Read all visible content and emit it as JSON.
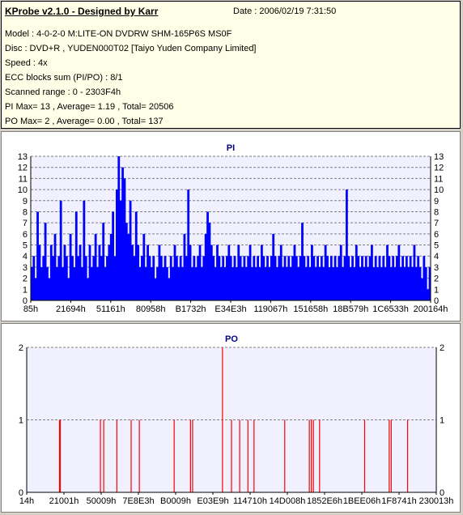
{
  "header": {
    "title": "KProbe v2.1.0 - Designed by Karr",
    "date": "Date : 2006/02/19 7:31:50",
    "lines": [
      "Model : 4-0-2-0 M:LITE-ON DVDRW SHM-165P6S MS0F",
      "Disc : DVD+R , YUDEN000T02 [Taiyo Yuden Company Limited]",
      "Speed : 4x",
      "ECC blocks sum (PI/PO) : 8/1",
      "Scanned range : 0 - 2303F4h",
      "PI Max= 13 , Average= 1.19 , Total= 20506",
      "PO Max= 2 , Average= 0.00 , Total= 137"
    ]
  },
  "colors": {
    "pi": "#0000ff",
    "po": "#ff0000",
    "plot_bg": "#f0f0ff",
    "title": "#000080"
  },
  "chart_data": [
    {
      "type": "bar",
      "title": "PI",
      "ylim": [
        0,
        13
      ],
      "yticks": [
        0,
        1,
        2,
        3,
        4,
        5,
        6,
        7,
        8,
        9,
        10,
        11,
        12,
        13
      ],
      "xticks": [
        "85h",
        "21694h",
        "51161h",
        "80958h",
        "B1732h",
        "E34E3h",
        "119067h",
        "151658h",
        "18B579h",
        "1C6533h",
        "200164h"
      ],
      "grid": true,
      "series": [
        {
          "values": [
            3,
            4,
            2,
            8,
            5,
            3,
            4,
            7,
            3,
            2,
            5,
            4,
            6,
            3,
            4,
            9,
            3,
            5,
            4,
            2,
            6,
            4,
            3,
            8,
            4,
            5,
            3,
            9,
            4,
            2,
            5,
            3,
            4,
            6,
            3,
            5,
            4,
            7,
            3,
            4,
            5,
            6,
            8,
            4,
            10,
            13,
            9,
            12,
            11,
            7,
            6,
            9,
            5,
            4,
            8,
            5,
            3,
            4,
            6,
            3,
            5,
            4,
            3,
            4,
            2,
            3,
            5,
            4,
            3,
            4,
            3,
            2,
            4,
            3,
            5,
            4,
            3,
            4,
            3,
            6,
            4,
            10,
            5,
            3,
            4,
            3,
            4,
            5,
            3,
            4,
            6,
            8,
            7,
            5,
            4,
            3,
            5,
            4,
            3,
            4,
            3,
            4,
            5,
            4,
            3,
            4,
            3,
            5,
            4,
            3,
            4,
            3,
            4,
            5,
            3,
            4,
            3,
            4,
            3,
            5,
            4,
            3,
            4,
            3,
            4,
            6,
            4,
            3,
            4,
            5,
            3,
            4,
            3,
            4,
            3,
            4,
            5,
            4,
            3,
            4,
            7,
            4,
            3,
            4,
            3,
            5,
            4,
            3,
            4,
            3,
            4,
            3,
            5,
            4,
            3,
            4,
            3,
            4,
            3,
            4,
            5,
            3,
            4,
            10,
            4,
            3,
            4,
            3,
            5,
            4,
            3,
            4,
            3,
            4,
            3,
            4,
            5,
            3,
            4,
            3,
            4,
            3,
            4,
            3,
            5,
            4,
            3,
            4,
            3,
            4,
            5,
            3,
            4,
            3,
            4,
            3,
            4,
            3,
            5,
            3,
            4,
            3,
            2,
            4,
            3,
            1,
            3
          ]
        }
      ]
    },
    {
      "type": "bar",
      "title": "PO",
      "ylim": [
        0,
        2
      ],
      "yticks": [
        0,
        1,
        2
      ],
      "xticks": [
        "14h",
        "21001h",
        "50009h",
        "7E8E3h",
        "B0009h",
        "E03E9h",
        "114710h",
        "14D008h",
        "1852E6h",
        "1BEE06h",
        "1F8741h",
        "230013h"
      ],
      "grid": true,
      "series": [
        {
          "points": [
            [
              0.08,
              1
            ],
            [
              0.082,
              1
            ],
            [
              0.18,
              1
            ],
            [
              0.188,
              1
            ],
            [
              0.22,
              1
            ],
            [
              0.255,
              1
            ],
            [
              0.275,
              1
            ],
            [
              0.36,
              1
            ],
            [
              0.4,
              1
            ],
            [
              0.405,
              1
            ],
            [
              0.478,
              2
            ],
            [
              0.5,
              1
            ],
            [
              0.52,
              1
            ],
            [
              0.54,
              1
            ],
            [
              0.555,
              1
            ],
            [
              0.63,
              1
            ],
            [
              0.69,
              1
            ],
            [
              0.695,
              1
            ],
            [
              0.7,
              1
            ],
            [
              0.715,
              1
            ],
            [
              0.825,
              1
            ],
            [
              0.885,
              1
            ],
            [
              0.89,
              1
            ],
            [
              0.93,
              1
            ]
          ]
        }
      ]
    }
  ]
}
